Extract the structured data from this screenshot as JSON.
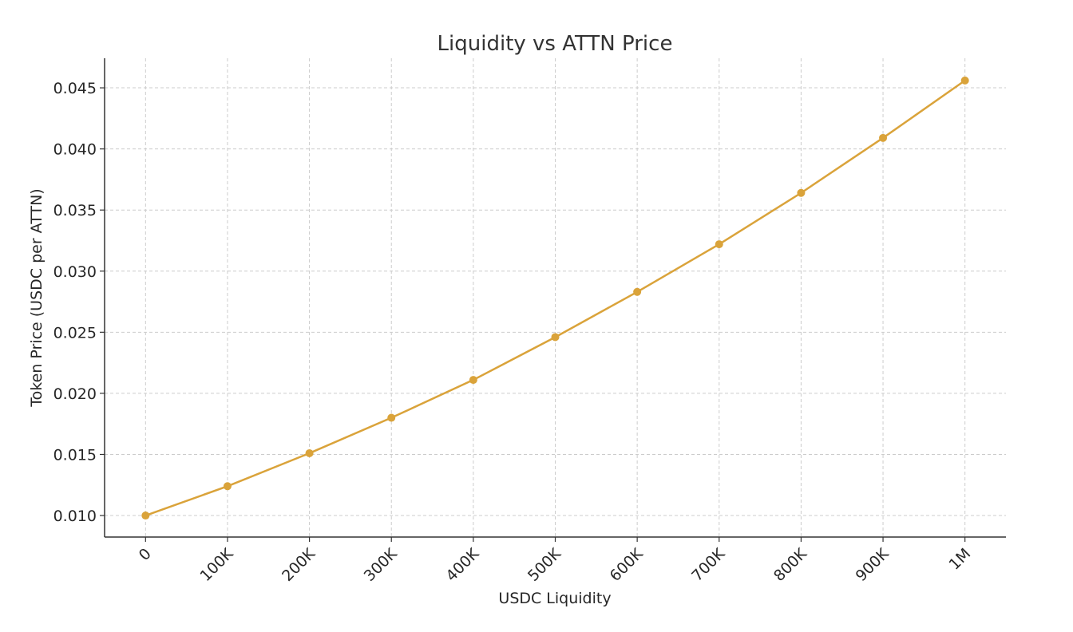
{
  "chart_data": {
    "type": "line",
    "title": "Liquidity vs ATTN Price",
    "xlabel": "USDC Liquidity",
    "ylabel": "Token Price (USDC per ATTN)",
    "x": [
      0,
      100000,
      200000,
      300000,
      400000,
      500000,
      600000,
      700000,
      800000,
      900000,
      1000000
    ],
    "x_tick_labels": [
      "0",
      "100K",
      "200K",
      "300K",
      "400K",
      "500K",
      "600K",
      "700K",
      "800K",
      "900K",
      "1M"
    ],
    "y_ticks": [
      0.01,
      0.015,
      0.02,
      0.025,
      0.03,
      0.035,
      0.04,
      0.045
    ],
    "y_tick_labels": [
      "0.010",
      "0.015",
      "0.020",
      "0.025",
      "0.030",
      "0.035",
      "0.040",
      "0.045"
    ],
    "series": [
      {
        "values": [
          0.01,
          0.0124,
          0.0151,
          0.018,
          0.0211,
          0.0246,
          0.0283,
          0.0322,
          0.0364,
          0.0409,
          0.0456
        ],
        "color": "#DAA33A",
        "marker": "circle"
      }
    ],
    "xlim": [
      -50000,
      1050000
    ],
    "ylim": [
      0.00824,
      0.04742
    ],
    "grid": true,
    "legend": "none"
  }
}
